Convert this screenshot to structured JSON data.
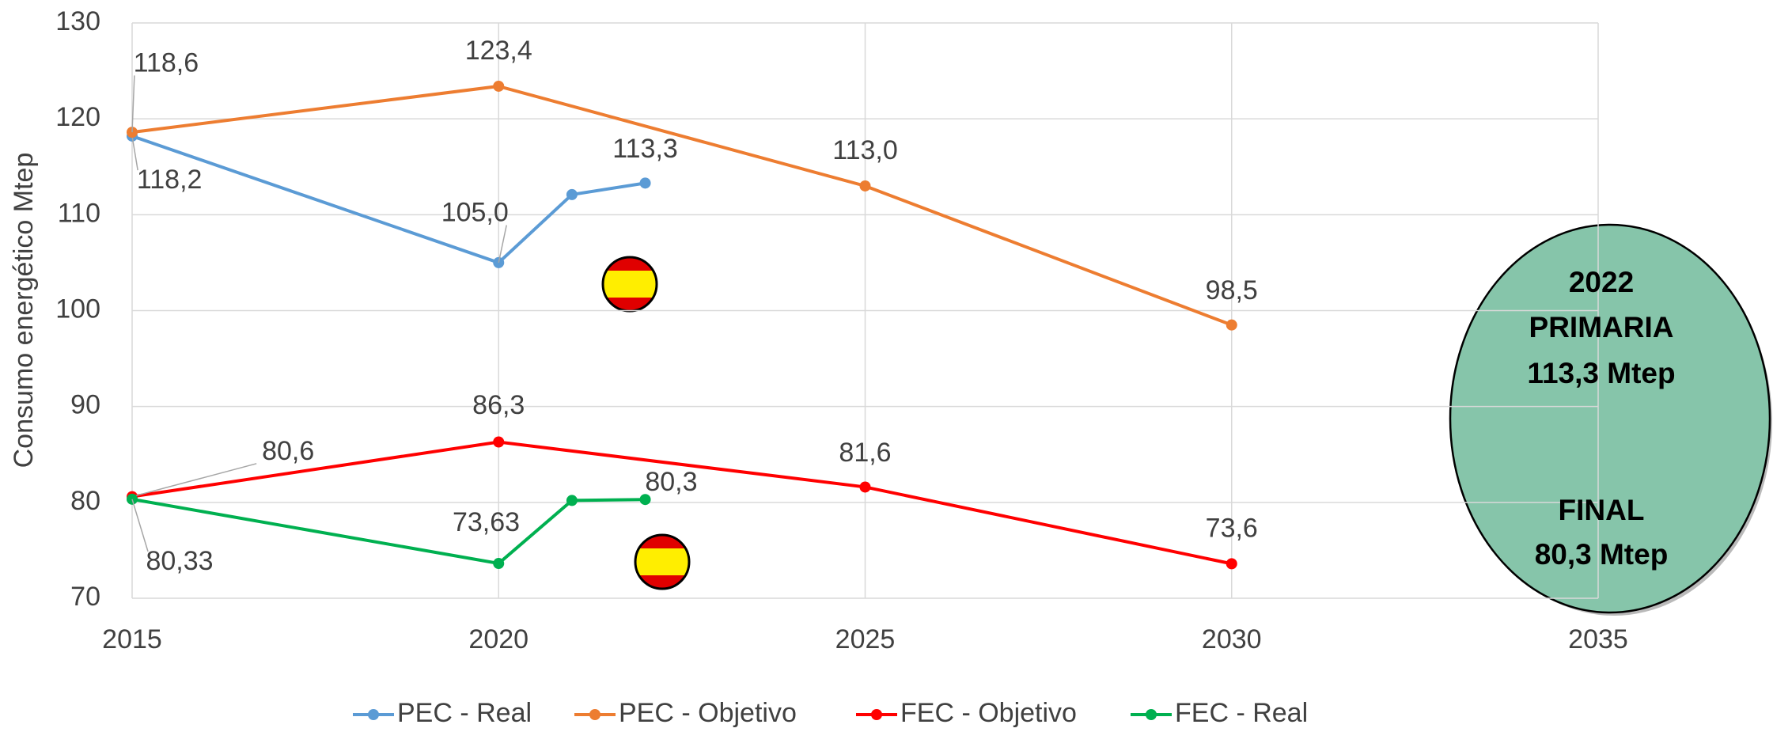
{
  "chart_data": {
    "type": "line",
    "ylabel": "Consumo energético Mtep",
    "xlim": [
      2015,
      2035
    ],
    "xticks": [
      2015,
      2020,
      2025,
      2030,
      2035
    ],
    "ylim": [
      70,
      130
    ],
    "yticks": [
      70,
      80,
      90,
      100,
      110,
      120,
      130
    ],
    "grid": true,
    "legend": "bottom",
    "series": [
      {
        "name": "PEC - Real",
        "color": "#5b9bd5",
        "x": [
          2015,
          2020,
          2021,
          2022
        ],
        "values": [
          118.2,
          105.0,
          112.1,
          113.3
        ],
        "value_labels": [
          "118,2",
          "105,0",
          null,
          "113,3"
        ]
      },
      {
        "name": "PEC - Objetivo",
        "color": "#ed7d31",
        "x": [
          2015,
          2020,
          2025,
          2030
        ],
        "values": [
          118.6,
          123.4,
          113.0,
          98.5
        ],
        "value_labels": [
          "118,6",
          "123,4",
          "113,0",
          "98,5"
        ]
      },
      {
        "name": "FEC - Objetivo",
        "color": "#ff0000",
        "x": [
          2015,
          2020,
          2025,
          2030
        ],
        "values": [
          80.6,
          86.3,
          81.6,
          73.6
        ],
        "value_labels": [
          "80,6",
          "86,3",
          "81,6",
          "73,6"
        ]
      },
      {
        "name": "FEC - Real",
        "color": "#00b050",
        "x": [
          2015,
          2020,
          2021,
          2022
        ],
        "values": [
          80.33,
          73.63,
          80.2,
          80.3
        ],
        "value_labels": [
          "80,33",
          "73,63",
          null,
          "80,3"
        ]
      }
    ],
    "annotations": [
      "2022",
      "PRIMARIA",
      "113,3 Mtep",
      "FINAL",
      "80,3 Mtep"
    ]
  }
}
